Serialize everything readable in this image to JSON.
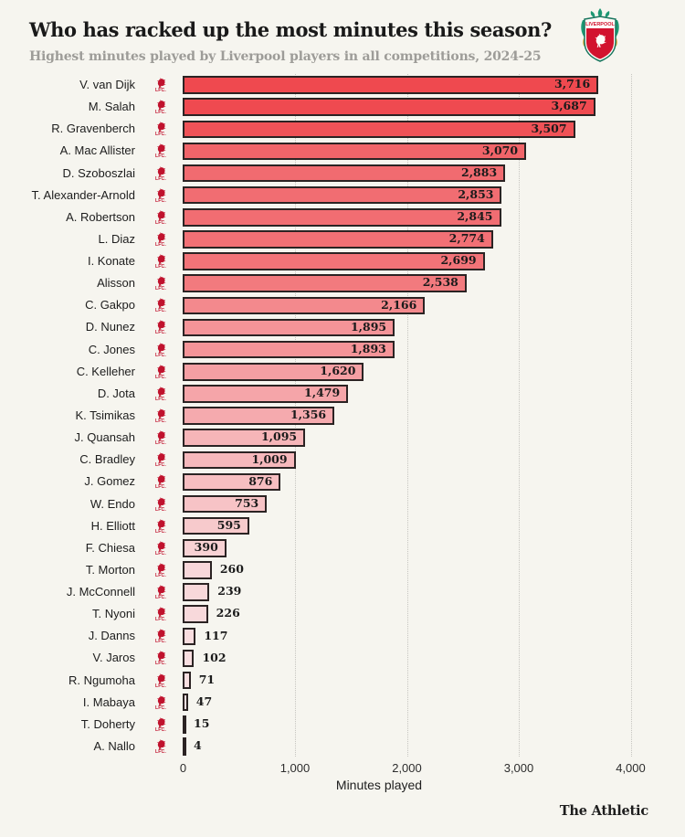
{
  "header": {
    "title": "Who has racked up the most minutes this season?",
    "subtitle": "Highest minutes played by Liverpool players in all competitions, 2024-25",
    "crest_icon": "liverpool-fc-crest-icon",
    "crest_text": "LIVERPOOL"
  },
  "footer": {
    "brand": "The Athletic"
  },
  "chart_data": {
    "type": "bar",
    "orientation": "horizontal",
    "title": "Who has racked up the most minutes this season?",
    "subtitle": "Highest minutes played by Liverpool players in all competitions, 2024-25",
    "xlabel": "Minutes played",
    "xlim": [
      0,
      4000
    ],
    "x_ticks": [
      0,
      1000,
      2000,
      3000,
      4000
    ],
    "x_tick_labels": [
      "0",
      "1,000",
      "2,000",
      "3,000",
      "4,000"
    ],
    "grid": "vertical-dotted",
    "legend": "none",
    "row_icon": "liverpool-liver-bird-icon",
    "row_icon_text": "LFC.",
    "categories": [
      "V. van Dijk",
      "M. Salah",
      "R. Gravenberch",
      "A. Mac Allister",
      "D. Szoboszlai",
      "T. Alexander-Arnold",
      "A. Robertson",
      "L. Diaz",
      "I. Konate",
      "Alisson",
      "C. Gakpo",
      "D. Nunez",
      "C. Jones",
      "C. Kelleher",
      "D. Jota",
      "K. Tsimikas",
      "J. Quansah",
      "C. Bradley",
      "J. Gomez",
      "W. Endo",
      "H. Elliott",
      "F. Chiesa",
      "T. Morton",
      "J. McConnell",
      "T. Nyoni",
      "J. Danns",
      "V. Jaros",
      "R. Ngumoha",
      "I. Mabaya",
      "T. Doherty",
      "A. Nallo"
    ],
    "values": [
      3716,
      3687,
      3507,
      3070,
      2883,
      2853,
      2845,
      2774,
      2699,
      2538,
      2166,
      1895,
      1893,
      1620,
      1479,
      1356,
      1095,
      1009,
      876,
      753,
      595,
      390,
      260,
      239,
      226,
      117,
      102,
      71,
      47,
      15,
      4
    ],
    "value_labels": [
      "3,716",
      "3,687",
      "3,507",
      "3,070",
      "2,883",
      "2,853",
      "2,845",
      "2,774",
      "2,699",
      "2,538",
      "2,166",
      "1,895",
      "1,893",
      "1,620",
      "1,479",
      "1,356",
      "1,095",
      "1,009",
      "876",
      "753",
      "595",
      "390",
      "260",
      "239",
      "226",
      "117",
      "102",
      "71",
      "47",
      "15",
      "4"
    ],
    "colors": {
      "background": "#f6f5ef",
      "bar_high": "#ef494f",
      "bar_low": "#f9e2e4",
      "bar_border": "#2b2323",
      "grid": "#c6c5c0",
      "liver_red": "#c0122d",
      "crest_green": "#1d9873",
      "crest_gold": "#edb64d",
      "crest_red": "#d2122e"
    }
  }
}
